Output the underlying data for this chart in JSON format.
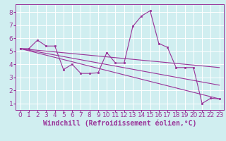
{
  "bg_color": "#d0eef0",
  "line_color": "#993399",
  "grid_color": "#ffffff",
  "xlabel": "Windchill (Refroidissement éolien,°C)",
  "yticks": [
    1,
    2,
    3,
    4,
    5,
    6,
    7,
    8
  ],
  "xticks": [
    0,
    1,
    2,
    3,
    4,
    5,
    6,
    7,
    8,
    9,
    10,
    11,
    12,
    13,
    14,
    15,
    16,
    17,
    18,
    19,
    20,
    21,
    22,
    23
  ],
  "ylim": [
    0.5,
    8.6
  ],
  "xlim": [
    -0.5,
    23.5
  ],
  "series1_x": [
    0,
    1,
    2,
    3,
    4,
    5,
    6,
    7,
    8,
    9,
    10,
    11,
    12,
    13,
    14,
    15,
    16,
    17,
    18,
    19,
    20,
    21,
    22,
    23
  ],
  "series1_y": [
    5.2,
    5.2,
    5.85,
    5.4,
    5.4,
    3.6,
    4.0,
    3.3,
    3.3,
    3.35,
    4.9,
    4.1,
    4.1,
    6.9,
    7.7,
    8.1,
    5.6,
    5.3,
    3.75,
    3.75,
    3.75,
    1.0,
    1.4,
    1.35
  ],
  "trend1_x": [
    0,
    23
  ],
  "trend1_y": [
    5.2,
    3.75
  ],
  "trend2_x": [
    0,
    23
  ],
  "trend2_y": [
    5.2,
    1.35
  ],
  "trend3_x": [
    0,
    23
  ],
  "trend3_y": [
    5.2,
    2.4
  ],
  "tick_fontsize": 6.5,
  "xlabel_fontsize": 7,
  "tick_color": "#993399",
  "xlabel_color": "#993399"
}
